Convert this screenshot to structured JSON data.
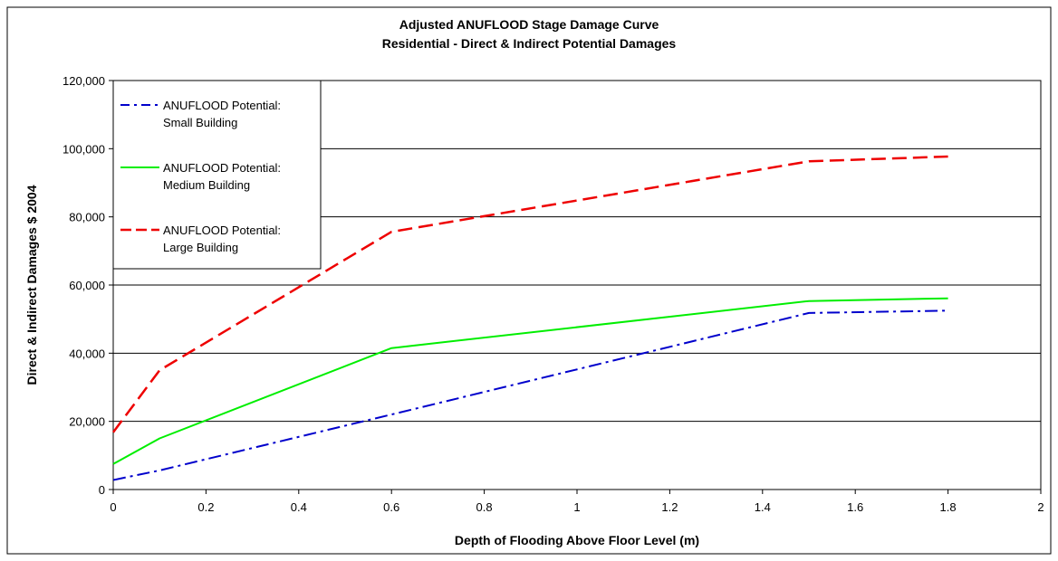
{
  "chart_data": {
    "type": "line",
    "title": "Adjusted ANUFLOOD  Stage Damage Curve",
    "subtitle": "Residential - Direct & Indirect Potential  Damages",
    "xlabel": "Depth of Flooding Above Floor Level (m)",
    "ylabel": "Direct & Indirect Damages $ 2004",
    "xlim": [
      0,
      2
    ],
    "ylim": [
      0,
      120000
    ],
    "x_ticks": [
      "0",
      "0.2",
      "0.4",
      "0.6",
      "0.8",
      "1",
      "1.2",
      "1.4",
      "1.6",
      "1.8",
      "2"
    ],
    "y_ticks": [
      "0",
      "20,000",
      "40,000",
      "60,000",
      "80,000",
      "100,000",
      "120,000"
    ],
    "grid": "horizontal",
    "legend_position": "top-left",
    "series": [
      {
        "name_line1": "ANUFLOOD Potential:",
        "name_line2": "Small Building",
        "color": "#0000cc",
        "style": "dash-dot",
        "x": [
          0,
          0.1,
          0.6,
          1.5,
          1.8
        ],
        "y": [
          2800,
          5600,
          22000,
          51800,
          52500
        ]
      },
      {
        "name_line1": "ANUFLOOD Potential:",
        "name_line2": "Medium Building",
        "color": "#00ee00",
        "style": "solid",
        "x": [
          0,
          0.1,
          0.6,
          1.5,
          1.8
        ],
        "y": [
          7500,
          15000,
          41500,
          55300,
          56100
        ]
      },
      {
        "name_line1": "ANUFLOOD Potential:",
        "name_line2": "Large Building",
        "color": "#ee0000",
        "style": "dashed",
        "x": [
          0,
          0.1,
          0.6,
          1.5,
          1.8
        ],
        "y": [
          16800,
          35000,
          75600,
          96300,
          97700
        ]
      }
    ]
  }
}
